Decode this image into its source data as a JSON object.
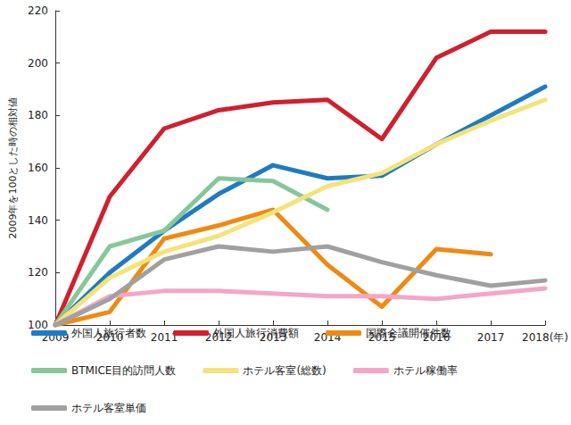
{
  "chart_data": {
    "type": "line",
    "y_label": "2009年を100とした時の相対値",
    "categories": [
      "2009",
      "2010",
      "2011",
      "2012",
      "2013",
      "2014",
      "2015",
      "2016",
      "2017",
      "2018(年)"
    ],
    "ylim": [
      100,
      220
    ],
    "yticks": [
      100,
      120,
      140,
      160,
      180,
      200,
      220
    ],
    "grid": false,
    "legend": "bottom",
    "marker": "none",
    "line_style": "solid",
    "series": [
      {
        "name": "外国人旅行者数",
        "color": "#1f7bc1",
        "values": [
          100,
          120,
          136,
          150,
          161,
          156,
          157,
          169,
          180,
          191
        ]
      },
      {
        "name": "外国人旅行消費額",
        "color": "#d0202e",
        "values": [
          100,
          149,
          175,
          182,
          185,
          186,
          171,
          202,
          212,
          212
        ]
      },
      {
        "name": "国際会議開催件数",
        "color": "#ee8a14",
        "values": [
          100,
          105,
          133,
          138,
          144,
          123,
          107,
          129,
          127,
          null
        ]
      },
      {
        "name": "BTMICE目的訪問人数",
        "color": "#86c79a",
        "values": [
          100,
          130,
          136,
          156,
          155,
          144,
          null,
          null,
          null,
          null
        ]
      },
      {
        "name": "ホテル客室(総数)",
        "color": "#f3e37a",
        "values": [
          100,
          118,
          128,
          134,
          143,
          153,
          158,
          169,
          178,
          186
        ]
      },
      {
        "name": "ホテル稼働率",
        "color": "#f4a6c8",
        "values": [
          100,
          111,
          113,
          113,
          112,
          111,
          111,
          110,
          112,
          114
        ]
      },
      {
        "name": "ホテル客室単価",
        "color": "#a0a0a0",
        "values": [
          100,
          110,
          125,
          130,
          128,
          130,
          124,
          119,
          115,
          117
        ]
      }
    ]
  }
}
